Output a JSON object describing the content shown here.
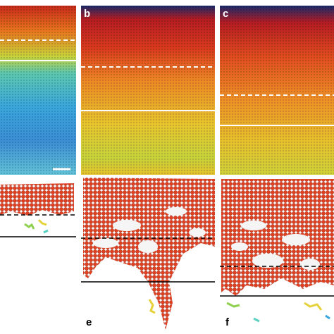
{
  "panels": [
    {
      "label": "b"
    },
    {
      "label": "c"
    },
    {
      "label": "e"
    },
    {
      "label": "f"
    }
  ]
}
